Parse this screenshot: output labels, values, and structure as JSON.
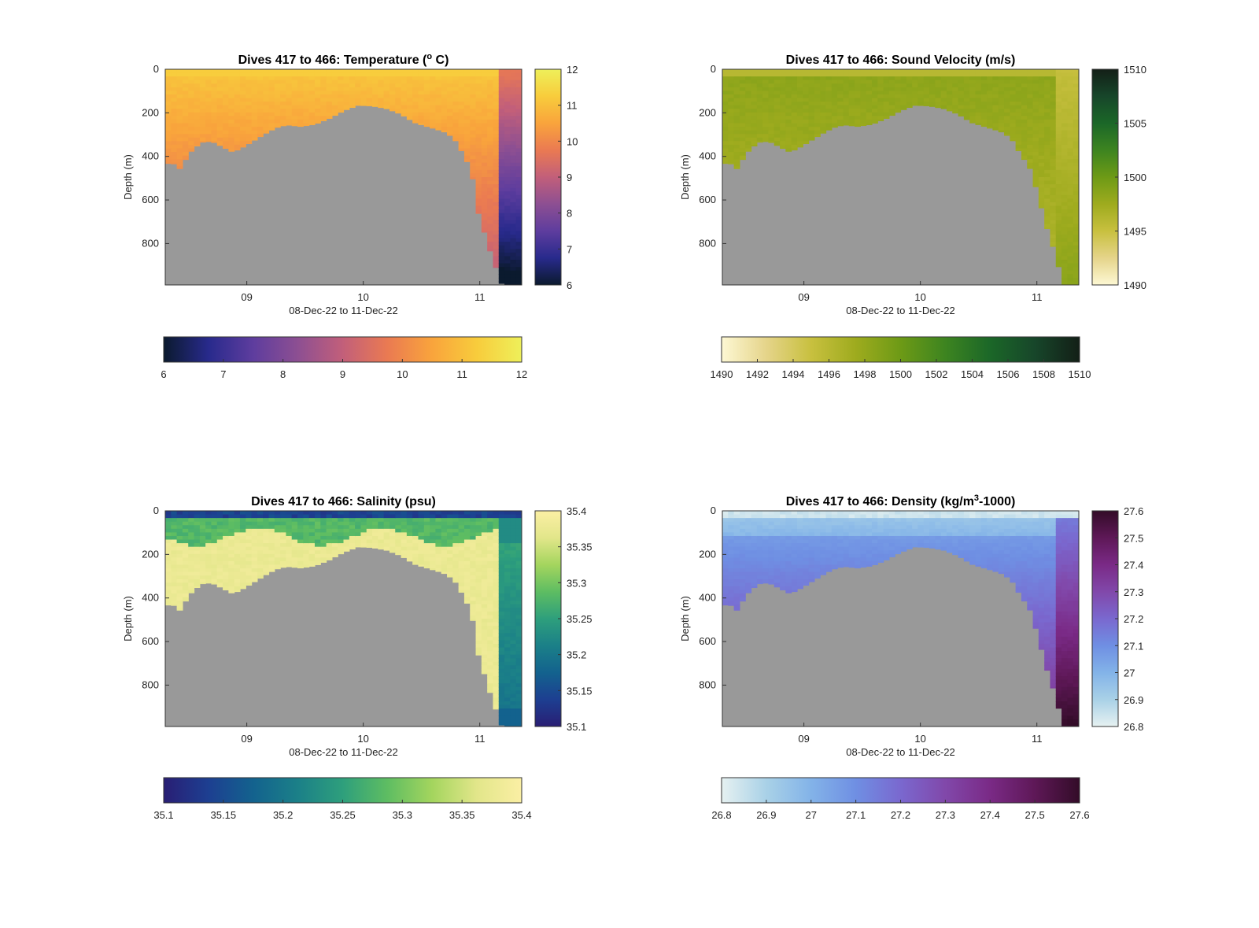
{
  "chart_data": [
    {
      "type": "heatmap",
      "variable": "temperature",
      "title_main": "Dives 417 to 466: Temperature (",
      "title_sup": "o",
      "title_tail": " C)",
      "xlabel": "08-Dec-22 to 11-Dec-22",
      "ylabel": "Depth (m)",
      "x_ticks": [
        "09",
        "10",
        "11"
      ],
      "y_ticks": [
        "0",
        "200",
        "400",
        "600",
        "800"
      ],
      "colorbar_ticks_vertical": [
        "12",
        "11",
        "10",
        "9",
        "8",
        "7",
        "6"
      ],
      "colorbar_ticks_horizontal": [
        "6",
        "7",
        "8",
        "9",
        "10",
        "11",
        "12"
      ],
      "clim": [
        6,
        12
      ],
      "colormap": [
        "#0b1a2e",
        "#282a8c",
        "#5e3d9e",
        "#8d4f92",
        "#c25f7a",
        "#ea7a52",
        "#f9a43c",
        "#f8cc3c",
        "#eef05a"
      ],
      "bathymetry": "gray",
      "background_color": "#999999"
    },
    {
      "type": "heatmap",
      "variable": "sound_velocity",
      "title_main": "Dives 417 to 466: Sound Velocity (m/s)",
      "title_sup": "",
      "title_tail": "",
      "xlabel": "08-Dec-22 to 11-Dec-22",
      "ylabel": "Depth (m)",
      "x_ticks": [
        "09",
        "10",
        "11"
      ],
      "y_ticks": [
        "0",
        "200",
        "400",
        "600",
        "800"
      ],
      "colorbar_ticks_vertical": [
        "1510",
        "1505",
        "1500",
        "1495",
        "1490"
      ],
      "colorbar_ticks_horizontal": [
        "1490",
        "1492",
        "1494",
        "1496",
        "1498",
        "1500",
        "1502",
        "1504",
        "1506",
        "1508",
        "1510"
      ],
      "clim": [
        1490,
        1510
      ],
      "colormap": [
        "#fdf8d4",
        "#e5d48a",
        "#c8c03f",
        "#9eab1e",
        "#6d9a16",
        "#3d8420",
        "#1b6728",
        "#17462a",
        "#131f17"
      ]
    },
    {
      "type": "heatmap",
      "variable": "salinity",
      "title_main": "Dives 417 to 466: Salinity (psu)",
      "title_sup": "",
      "title_tail": "",
      "xlabel": "08-Dec-22 to 11-Dec-22",
      "ylabel": "Depth (m)",
      "x_ticks": [
        "09",
        "10",
        "11"
      ],
      "y_ticks": [
        "0",
        "200",
        "400",
        "600",
        "800"
      ],
      "colorbar_ticks_vertical": [
        "35.4",
        "35.35",
        "35.3",
        "35.25",
        "35.2",
        "35.15",
        "35.1"
      ],
      "colorbar_ticks_horizontal": [
        "35.1",
        "35.15",
        "35.2",
        "35.25",
        "35.3",
        "35.35",
        "35.4"
      ],
      "clim": [
        35.1,
        35.4
      ],
      "colormap": [
        "#291e74",
        "#1d3f91",
        "#13628e",
        "#1b8088",
        "#2e9f7c",
        "#5ebd62",
        "#a4d55e",
        "#e2e68a",
        "#fbefa4"
      ]
    },
    {
      "type": "heatmap",
      "variable": "density",
      "title_main": "Dives 417 to 466: Density (kg/m",
      "title_sup": "3",
      "title_tail": "-1000)",
      "xlabel": "08-Dec-22 to 11-Dec-22",
      "ylabel": "Depth (m)",
      "x_ticks": [
        "09",
        "10",
        "11"
      ],
      "y_ticks": [
        "0",
        "200",
        "400",
        "600",
        "800"
      ],
      "colorbar_ticks_vertical": [
        "27.6",
        "27.5",
        "27.4",
        "27.3",
        "27.2",
        "27.1",
        "27",
        "26.9",
        "26.8"
      ],
      "colorbar_ticks_horizontal": [
        "26.8",
        "26.9",
        "27",
        "27.1",
        "27.2",
        "27.3",
        "27.4",
        "27.5",
        "27.6"
      ],
      "clim": [
        26.8,
        27.6
      ],
      "colormap": [
        "#e6f1f1",
        "#a9d1e7",
        "#83b3e8",
        "#6f8fe3",
        "#7a68cf",
        "#8148aa",
        "#7a2a86",
        "#5e1857",
        "#330c28"
      ]
    }
  ]
}
